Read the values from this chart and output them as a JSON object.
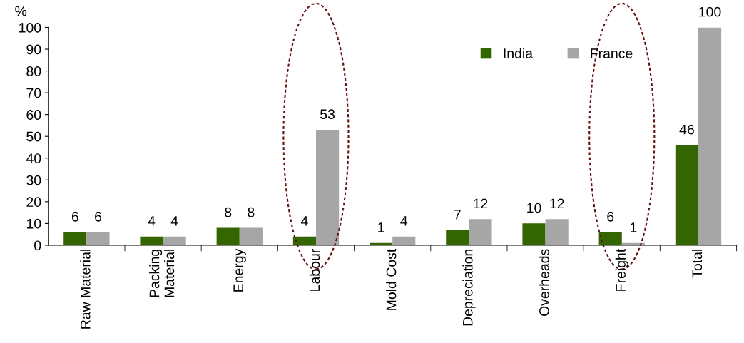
{
  "chart_data": {
    "type": "bar",
    "ylabel": "%",
    "categories": [
      "Raw Material",
      "Packing\nMaterial",
      "Energy",
      "Labour",
      "Mold Cost",
      "Depreciation",
      "Overheads",
      "Freight",
      "Total"
    ],
    "series": [
      {
        "name": "India",
        "color": "#336600",
        "values": [
          6,
          4,
          8,
          4,
          1,
          7,
          10,
          6,
          46
        ]
      },
      {
        "name": "France",
        "color": "#a6a6a6",
        "values": [
          6,
          4,
          8,
          53,
          4,
          12,
          12,
          1,
          100
        ]
      }
    ],
    "ylim": [
      0,
      100
    ],
    "yticks": [
      0,
      10,
      20,
      30,
      40,
      50,
      60,
      70,
      80,
      90,
      100
    ],
    "data_labels": true,
    "grid": false,
    "legend": "top right"
  }
}
